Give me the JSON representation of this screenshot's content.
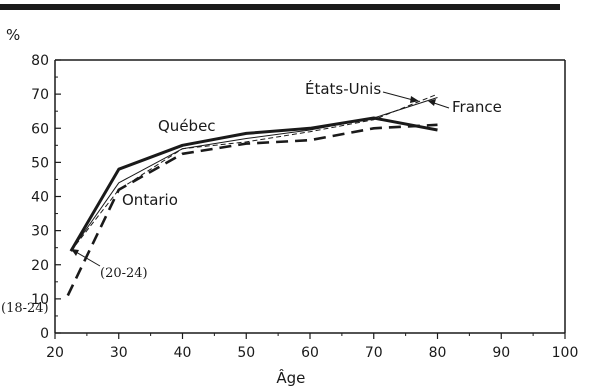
{
  "chart_data": {
    "type": "line",
    "title": "",
    "ylabel": "%",
    "xlabel": "Âge",
    "xlim": [
      20,
      100
    ],
    "ylim": [
      0,
      80
    ],
    "x_ticks": [
      20,
      30,
      40,
      50,
      60,
      70,
      80,
      90,
      100
    ],
    "y_ticks": [
      0,
      10,
      20,
      30,
      40,
      50,
      60,
      70,
      80
    ],
    "grid": false,
    "series": [
      {
        "name": "Québec",
        "color": "#1a1a1a",
        "style": "solid-thick",
        "points": [
          [
            22.5,
            24
          ],
          [
            30,
            48
          ],
          [
            40,
            55
          ],
          [
            50,
            58.5
          ],
          [
            60,
            60
          ],
          [
            70,
            63
          ],
          [
            80,
            59.5
          ]
        ]
      },
      {
        "name": "Ontario",
        "color": "#1a1a1a",
        "style": "dashed-thick",
        "points": [
          [
            22,
            11
          ],
          [
            30,
            42
          ],
          [
            40,
            52.5
          ],
          [
            50,
            55.5
          ],
          [
            60,
            56.5
          ],
          [
            70,
            60
          ],
          [
            80,
            61
          ]
        ]
      },
      {
        "name": "États-Unis",
        "color": "#1a1a1a",
        "style": "dashed-thin",
        "points": [
          [
            22.5,
            24
          ],
          [
            30,
            42
          ],
          [
            40,
            54
          ],
          [
            50,
            56
          ],
          [
            60,
            59
          ],
          [
            70,
            62.5
          ],
          [
            80,
            70
          ]
        ]
      },
      {
        "name": "France",
        "color": "#1a1a1a",
        "style": "solid-thin",
        "points": [
          [
            22.5,
            24
          ],
          [
            30,
            44
          ],
          [
            40,
            54
          ],
          [
            50,
            57
          ],
          [
            60,
            59.5
          ],
          [
            70,
            63
          ],
          [
            80,
            69
          ]
        ]
      }
    ],
    "annotations": [
      {
        "text": "Québec",
        "style": "label"
      },
      {
        "text": "Ontario",
        "style": "label"
      },
      {
        "text": "États-Unis",
        "style": "label"
      },
      {
        "text": "France",
        "style": "label"
      },
      {
        "text": "(20-24)",
        "style": "note"
      },
      {
        "text": "(18-24)",
        "style": "note"
      }
    ]
  }
}
